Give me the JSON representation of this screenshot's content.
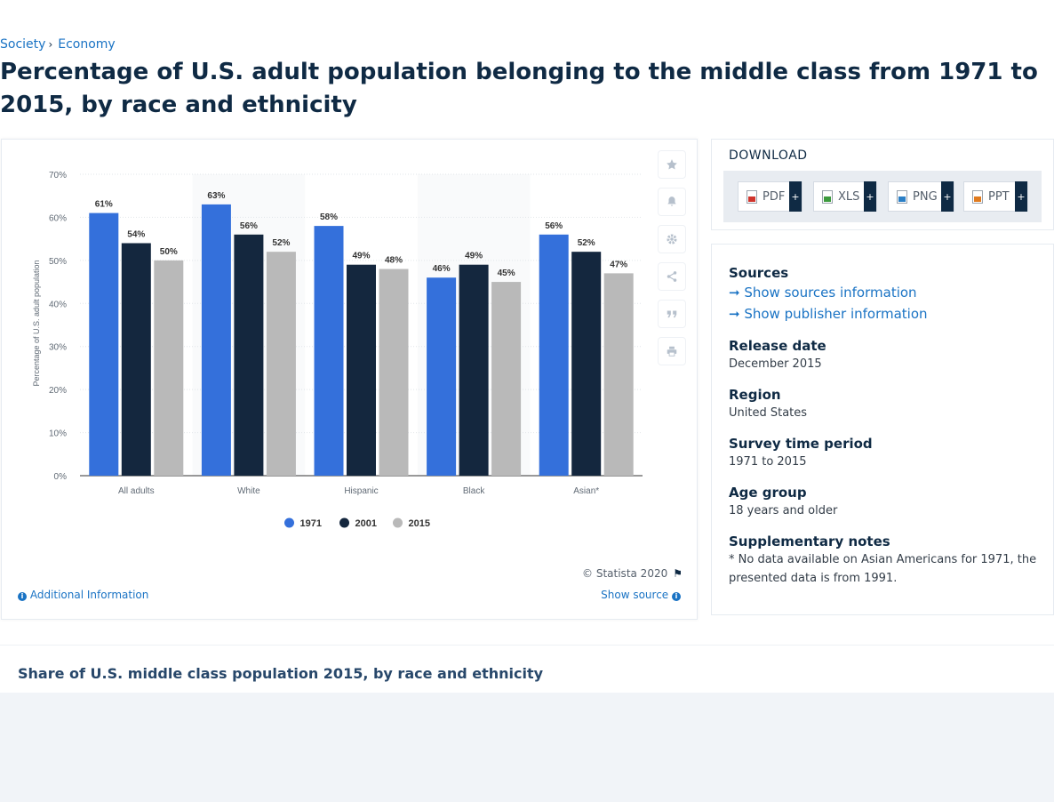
{
  "breadcrumb": {
    "items": [
      "Society",
      "Economy"
    ],
    "separator": "›"
  },
  "title": "Percentage of U.S. adult population belonging to the middle class from 1971 to 2015, by race and ethnicity",
  "chart_data": {
    "type": "bar",
    "categories": [
      "All adults",
      "White",
      "Hispanic",
      "Black",
      "Asian*"
    ],
    "series": [
      {
        "name": "1971",
        "color": "#3470db",
        "values": [
          61,
          63,
          58,
          46,
          56
        ]
      },
      {
        "name": "2001",
        "color": "#14273e",
        "values": [
          54,
          56,
          49,
          49,
          52
        ]
      },
      {
        "name": "2015",
        "color": "#b9b9b9",
        "values": [
          50,
          52,
          48,
          45,
          47
        ]
      }
    ],
    "value_labels": [
      [
        "61%",
        "63%",
        "58%",
        "46%",
        "56%"
      ],
      [
        "54%",
        "56%",
        "49%",
        "49%",
        "52%"
      ],
      [
        "50%",
        "52%",
        "48%",
        "45%",
        "47%"
      ]
    ],
    "ylabel": "Percentage of U.S. adult population",
    "ylim": [
      0,
      70
    ],
    "yticks": [
      0,
      10,
      20,
      30,
      40,
      50,
      60,
      70
    ],
    "ytick_labels": [
      "0%",
      "10%",
      "20%",
      "30%",
      "40%",
      "50%",
      "60%",
      "70%"
    ],
    "grid": true,
    "legend_position": "bottom-center"
  },
  "chart_footer": {
    "copyright": "© Statista 2020",
    "additional_info": "Additional Information",
    "show_source": "Show source"
  },
  "toolbar": {
    "icons": [
      "star-icon",
      "bell-icon",
      "gear-icon",
      "share-icon",
      "quote-icon",
      "print-icon"
    ]
  },
  "download": {
    "title": "DOWNLOAD",
    "buttons": [
      {
        "label": "PDF",
        "icon_color": "#d0342c"
      },
      {
        "label": "XLS",
        "icon_color": "#3d9a3d"
      },
      {
        "label": "PNG",
        "icon_color": "#2a7fc6"
      },
      {
        "label": "PPT",
        "icon_color": "#e07b1f"
      }
    ],
    "plus": "+"
  },
  "meta": {
    "sources_label": "Sources",
    "show_sources": "Show sources information",
    "show_publisher": "Show publisher information",
    "release_date_label": "Release date",
    "release_date": "December 2015",
    "region_label": "Region",
    "region": "United States",
    "survey_label": "Survey time period",
    "survey": "1971 to 2015",
    "age_label": "Age group",
    "age": "18 years and older",
    "notes_label": "Supplementary notes",
    "notes": "* No data available on Asian Americans for 1971, the presented data is from 1991."
  },
  "related": {
    "title": "Share of U.S. middle class population 2015, by race and ethnicity"
  }
}
